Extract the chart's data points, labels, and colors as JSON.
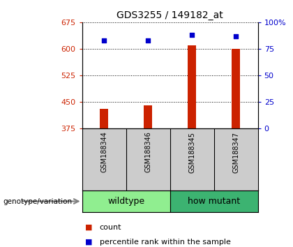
{
  "title": "GDS3255 / 149182_at",
  "samples": [
    "GSM188344",
    "GSM188346",
    "GSM188345",
    "GSM188347"
  ],
  "groups": [
    {
      "name": "wildtype",
      "color": "#90EE90",
      "samples": [
        0,
        1
      ]
    },
    {
      "name": "how mutant",
      "color": "#3CB371",
      "samples": [
        2,
        3
      ]
    }
  ],
  "count_values": [
    430,
    440,
    610,
    600
  ],
  "percentile_values": [
    83,
    83,
    88,
    87
  ],
  "ylim_left": [
    375,
    675
  ],
  "ylim_right": [
    0,
    100
  ],
  "yticks_left": [
    375,
    450,
    525,
    600,
    675
  ],
  "yticks_right": [
    0,
    25,
    50,
    75,
    100
  ],
  "ytick_labels_right": [
    "0",
    "25",
    "50",
    "75",
    "100%"
  ],
  "bar_color": "#CC2200",
  "dot_color": "#0000CC",
  "plot_bg": "#FFFFFF",
  "sample_box_color": "#CCCCCC",
  "legend_count_label": "count",
  "legend_pct_label": "percentile rank within the sample",
  "genotype_label": "genotype/variation"
}
